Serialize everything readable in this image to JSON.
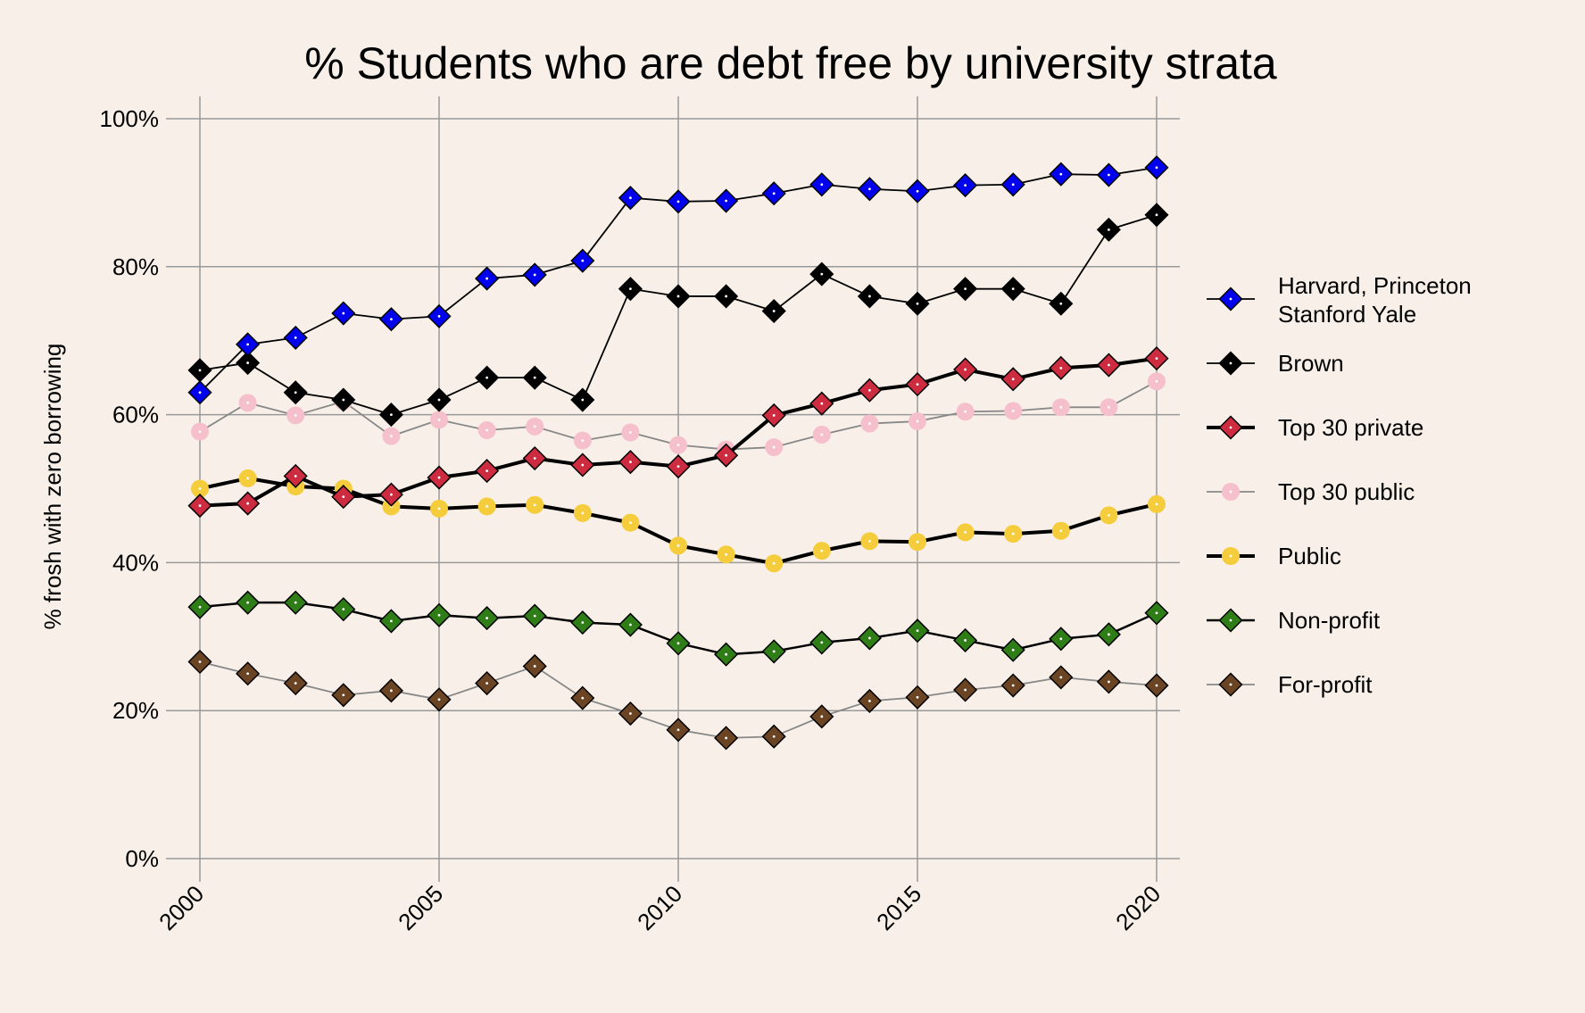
{
  "chart_data": {
    "type": "line",
    "title": "% Students who are debt free by university strata",
    "xlabel": "",
    "ylabel": "% frosh with zero borrowing",
    "xlim": [
      2000,
      2020
    ],
    "ylim": [
      0,
      100
    ],
    "x": [
      2000,
      2001,
      2002,
      2003,
      2004,
      2005,
      2006,
      2007,
      2008,
      2009,
      2010,
      2011,
      2012,
      2013,
      2014,
      2015,
      2016,
      2017,
      2018,
      2019,
      2020
    ],
    "x_ticks": [
      2000,
      2005,
      2010,
      2015,
      2020
    ],
    "x_tick_labels": [
      "2000",
      "2005",
      "2010",
      "2015",
      "2020"
    ],
    "y_ticks": [
      0,
      20,
      40,
      60,
      80,
      100
    ],
    "y_tick_labels": [
      "0%",
      "20%",
      "40%",
      "60%",
      "80%",
      "100%"
    ],
    "grid": true,
    "legend_position": "right",
    "series": [
      {
        "name": "Harvard, Princeton Stanford Yale",
        "legend_lines": [
          "Harvard, Princeton",
          "Stanford Yale"
        ],
        "color": "#0000ee",
        "marker": "diamond",
        "line_color": "#000000",
        "line": "thin",
        "values": [
          63.0,
          69.5,
          70.4,
          73.7,
          72.9,
          73.3,
          78.4,
          78.9,
          80.8,
          89.3,
          88.8,
          88.9,
          89.9,
          91.1,
          90.5,
          90.2,
          91.0,
          91.1,
          92.5,
          92.4,
          93.4
        ]
      },
      {
        "name": "Brown",
        "legend_lines": [
          "Brown"
        ],
        "color": "#000000",
        "marker": "diamond",
        "line_color": "#000000",
        "line": "thin",
        "values": [
          66,
          67,
          63,
          62,
          60,
          62,
          65,
          65,
          62,
          77,
          76,
          76,
          74,
          79,
          76,
          75,
          77,
          77,
          75,
          85,
          87
        ]
      },
      {
        "name": "Top 30 private",
        "legend_lines": [
          "Top 30 private"
        ],
        "color": "#cc2b40",
        "marker": "diamond",
        "line_color": "#000000",
        "line": "thick",
        "values": [
          47.7,
          48.0,
          51.7,
          48.9,
          49.2,
          51.5,
          52.4,
          54.1,
          53.2,
          53.6,
          53.0,
          54.5,
          59.9,
          61.5,
          63.3,
          64.1,
          66.1,
          64.8,
          66.3,
          66.7,
          67.6
        ]
      },
      {
        "name": "Top 30 public",
        "legend_lines": [
          "Top 30 public"
        ],
        "color": "#f5c0cc",
        "marker": "circle",
        "line_color": "#888888",
        "line": "thin",
        "values": [
          57.7,
          61.6,
          59.9,
          61.8,
          57.1,
          59.3,
          57.9,
          58.4,
          56.5,
          57.6,
          55.9,
          55.3,
          55.6,
          57.3,
          58.8,
          59.1,
          60.4,
          60.5,
          61.0,
          61.0,
          64.5
        ]
      },
      {
        "name": "Public",
        "legend_lines": [
          "Public"
        ],
        "color": "#f5cc3c",
        "marker": "circle",
        "line_color": "#000000",
        "line": "thick",
        "values": [
          50.0,
          51.4,
          50.3,
          50.0,
          47.6,
          47.3,
          47.6,
          47.8,
          46.7,
          45.4,
          42.3,
          41.1,
          39.9,
          41.6,
          42.9,
          42.8,
          44.1,
          43.9,
          44.3,
          46.4,
          47.9
        ]
      },
      {
        "name": "Non-profit",
        "legend_lines": [
          "Non-profit"
        ],
        "color": "#2e7d16",
        "marker": "diamond",
        "line_color": "#000000",
        "line": "medium",
        "values": [
          34.0,
          34.6,
          34.6,
          33.7,
          32.1,
          32.9,
          32.5,
          32.8,
          31.9,
          31.6,
          29.1,
          27.6,
          28.0,
          29.2,
          29.8,
          30.8,
          29.5,
          28.2,
          29.7,
          30.3,
          33.2
        ]
      },
      {
        "name": "For-profit",
        "legend_lines": [
          "For-profit"
        ],
        "color": "#6b4423",
        "marker": "diamond",
        "line_color": "#888888",
        "line": "thin",
        "values": [
          26.6,
          25.0,
          23.7,
          22.1,
          22.7,
          21.5,
          23.7,
          26.0,
          21.7,
          19.6,
          17.4,
          16.3,
          16.5,
          19.2,
          21.3,
          21.8,
          22.8,
          23.4,
          24.5,
          23.9,
          23.4
        ]
      }
    ]
  }
}
